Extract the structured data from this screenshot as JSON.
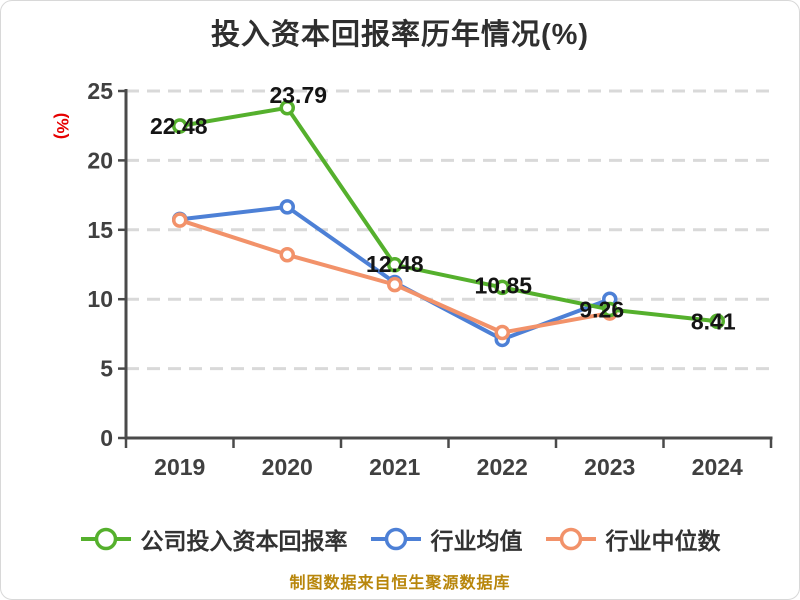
{
  "chart_data": {
    "type": "line",
    "title": "投入资本回报率历年情况(%)",
    "ylabel": "(%)",
    "xlabel": "",
    "categories": [
      "2019",
      "2020",
      "2021",
      "2022",
      "2023",
      "2024"
    ],
    "series": [
      {
        "name": "公司投入资本回报率",
        "color": "#55b02d",
        "values": [
          22.48,
          23.79,
          12.48,
          10.85,
          9.26,
          8.41
        ],
        "show_point_labels": true
      },
      {
        "name": "行业均值",
        "color": "#4d80d6",
        "values": [
          15.75,
          16.65,
          11.2,
          7.1,
          10.0,
          null
        ],
        "show_point_labels": false
      },
      {
        "name": "行业中位数",
        "color": "#f2926a",
        "values": [
          15.7,
          13.2,
          11.05,
          7.6,
          9.0,
          null
        ],
        "show_point_labels": false
      }
    ],
    "point_labels": [
      "22.48",
      "23.79",
      "12.48",
      "10.85",
      "9.26",
      "8.41"
    ],
    "ylim": [
      0,
      25
    ],
    "yticks": [
      0,
      5,
      10,
      15,
      20,
      25
    ],
    "grid": "horizontal-dashed",
    "legend_position": "bottom",
    "marker_style": "white-filled-circle"
  },
  "footer": {
    "source_note": "制图数据来自恒生聚源数据库"
  },
  "colors": {
    "background": "#ffffff",
    "title_text": "#2f2f2f",
    "axis": "#4a4a4a",
    "tick_text": "#404040",
    "grid": "#d9d9d9",
    "ylabel_red": "#e60000",
    "data_label": "#141414",
    "legend_text": "#333333",
    "footer_gold": "#b8860b"
  }
}
